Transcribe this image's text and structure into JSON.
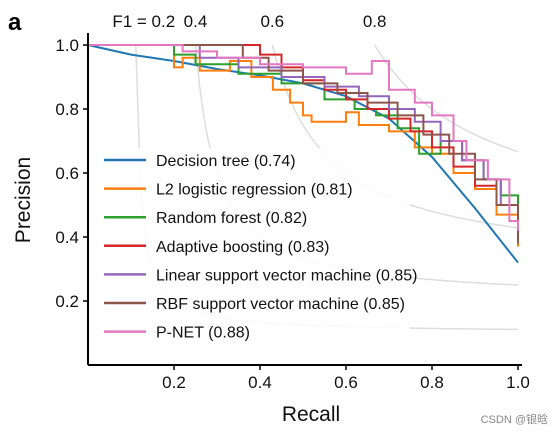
{
  "panel_label": "a",
  "watermark": "CSDN @银晗",
  "chart_data": {
    "type": "line",
    "xlabel": "Recall",
    "ylabel": "Precision",
    "xlim": [
      0,
      1.0
    ],
    "ylim": [
      0,
      1.0
    ],
    "x_ticks": [
      0.2,
      0.4,
      0.6,
      0.8,
      1.0
    ],
    "x_tick_labels": [
      "0.2",
      "0.4",
      "0.6",
      "0.8",
      "1.0"
    ],
    "y_ticks": [
      0.2,
      0.4,
      0.6,
      0.8,
      1.0
    ],
    "y_tick_labels": [
      "0.2",
      "0.4",
      "0.6",
      "0.8",
      "1.0"
    ],
    "grid": false,
    "legend_position": "bottom-left",
    "iso_f1": {
      "values": [
        0.2,
        0.4,
        0.6,
        0.8
      ],
      "labels": [
        "F1 = 0.2",
        "0.4",
        "0.6",
        "0.8"
      ],
      "color": "#dddddd"
    },
    "series": [
      {
        "name": "Decision tree (0.74)",
        "color": "#1f77b4",
        "x": [
          0.0,
          0.1,
          0.2,
          0.3,
          0.4,
          0.5,
          0.6,
          0.7,
          0.8,
          0.9,
          1.0
        ],
        "y": [
          1.0,
          0.97,
          0.95,
          0.925,
          0.905,
          0.88,
          0.84,
          0.77,
          0.65,
          0.49,
          0.32
        ]
      },
      {
        "name": "L2 logistic regression (0.81)",
        "color": "#ff7f0e",
        "x": [
          0.0,
          0.2,
          0.2,
          0.22,
          0.22,
          0.26,
          0.26,
          0.33,
          0.33,
          0.38,
          0.38,
          0.43,
          0.43,
          0.47,
          0.47,
          0.5,
          0.5,
          0.52,
          0.52,
          0.6,
          0.6,
          0.63,
          0.63,
          0.7,
          0.7,
          0.76,
          0.76,
          0.8,
          0.8,
          0.85,
          0.85,
          0.9,
          0.9,
          0.95,
          0.95,
          1.0,
          1.0
        ],
        "y": [
          1.0,
          1.0,
          0.93,
          0.93,
          0.96,
          0.96,
          0.92,
          0.92,
          0.95,
          0.95,
          0.9,
          0.9,
          0.86,
          0.86,
          0.82,
          0.82,
          0.78,
          0.78,
          0.76,
          0.76,
          0.79,
          0.79,
          0.75,
          0.75,
          0.73,
          0.73,
          0.68,
          0.68,
          0.66,
          0.66,
          0.6,
          0.6,
          0.55,
          0.55,
          0.47,
          0.47,
          0.37
        ]
      },
      {
        "name": "Random forest (0.82)",
        "color": "#2ca02c",
        "x": [
          0.0,
          0.2,
          0.2,
          0.25,
          0.25,
          0.35,
          0.35,
          0.45,
          0.45,
          0.55,
          0.55,
          0.62,
          0.62,
          0.67,
          0.67,
          0.72,
          0.72,
          0.77,
          0.77,
          0.82,
          0.82,
          0.87,
          0.87,
          0.92,
          0.92,
          0.96,
          0.96,
          1.0,
          1.0
        ],
        "y": [
          1.0,
          1.0,
          0.97,
          0.97,
          0.94,
          0.94,
          0.91,
          0.91,
          0.88,
          0.88,
          0.83,
          0.83,
          0.8,
          0.8,
          0.78,
          0.78,
          0.74,
          0.74,
          0.66,
          0.66,
          0.7,
          0.7,
          0.64,
          0.64,
          0.58,
          0.58,
          0.53,
          0.53,
          0.4
        ]
      },
      {
        "name": "Adaptive boosting (0.83)",
        "color": "#d62728",
        "x": [
          0.0,
          0.4,
          0.4,
          0.45,
          0.45,
          0.5,
          0.5,
          0.55,
          0.55,
          0.6,
          0.6,
          0.65,
          0.65,
          0.7,
          0.7,
          0.75,
          0.75,
          0.8,
          0.8,
          0.85,
          0.85,
          0.9,
          0.9,
          0.95,
          0.95,
          1.0,
          1.0
        ],
        "y": [
          1.0,
          1.0,
          0.97,
          0.97,
          0.93,
          0.93,
          0.89,
          0.89,
          0.86,
          0.86,
          0.83,
          0.83,
          0.8,
          0.8,
          0.77,
          0.77,
          0.73,
          0.73,
          0.68,
          0.68,
          0.62,
          0.62,
          0.56,
          0.56,
          0.5,
          0.5,
          0.38
        ]
      },
      {
        "name": "Linear support vector machine (0.85)",
        "color": "#9467bd",
        "x": [
          0.0,
          0.26,
          0.26,
          0.35,
          0.35,
          0.45,
          0.45,
          0.55,
          0.55,
          0.63,
          0.63,
          0.7,
          0.7,
          0.76,
          0.76,
          0.82,
          0.82,
          0.87,
          0.87,
          0.92,
          0.92,
          0.96,
          0.96,
          1.0,
          1.0
        ],
        "y": [
          1.0,
          1.0,
          0.96,
          0.96,
          0.93,
          0.93,
          0.9,
          0.9,
          0.87,
          0.87,
          0.84,
          0.84,
          0.8,
          0.8,
          0.76,
          0.76,
          0.7,
          0.7,
          0.64,
          0.64,
          0.58,
          0.58,
          0.5,
          0.5,
          0.4
        ]
      },
      {
        "name": "RBF support vector machine (0.85)",
        "color": "#8c564b",
        "x": [
          0.0,
          0.36,
          0.36,
          0.42,
          0.42,
          0.5,
          0.5,
          0.58,
          0.58,
          0.65,
          0.65,
          0.72,
          0.72,
          0.78,
          0.78,
          0.84,
          0.84,
          0.9,
          0.9,
          0.95,
          0.95,
          1.0,
          1.0
        ],
        "y": [
          1.0,
          1.0,
          0.96,
          0.96,
          0.92,
          0.92,
          0.88,
          0.88,
          0.85,
          0.85,
          0.82,
          0.82,
          0.78,
          0.78,
          0.72,
          0.72,
          0.66,
          0.66,
          0.58,
          0.58,
          0.5,
          0.5,
          0.38
        ]
      },
      {
        "name": "P-NET (0.88)",
        "color": "#e377c2",
        "x": [
          0.0,
          0.22,
          0.22,
          0.3,
          0.3,
          0.4,
          0.4,
          0.5,
          0.5,
          0.6,
          0.6,
          0.66,
          0.66,
          0.7,
          0.7,
          0.76,
          0.76,
          0.8,
          0.8,
          0.85,
          0.85,
          0.88,
          0.88,
          0.93,
          0.93,
          0.98,
          0.98,
          1.0,
          1.0
        ],
        "y": [
          1.0,
          1.0,
          0.98,
          0.98,
          0.96,
          0.96,
          0.94,
          0.94,
          0.93,
          0.93,
          0.91,
          0.91,
          0.95,
          0.95,
          0.86,
          0.86,
          0.82,
          0.82,
          0.78,
          0.78,
          0.7,
          0.7,
          0.64,
          0.64,
          0.58,
          0.58,
          0.45,
          0.45,
          0.42
        ]
      }
    ]
  }
}
